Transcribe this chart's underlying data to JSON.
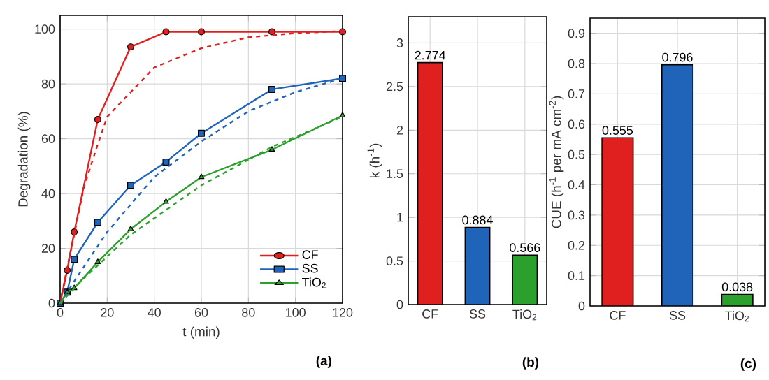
{
  "chart_data": [
    {
      "type": "line",
      "xlabel": "t (min)",
      "ylabel": "Degradation (%)",
      "xlim": [
        0,
        120
      ],
      "ylim": [
        0,
        105
      ],
      "xticks": [
        0,
        20,
        40,
        60,
        80,
        100,
        120
      ],
      "yticks": [
        0,
        20,
        40,
        60,
        80,
        100
      ],
      "grid": true,
      "legend": "bottom right",
      "annotations": [
        "(a)"
      ],
      "series": [
        {
          "name": "CF",
          "color": "#e0201f",
          "marker": "circle",
          "line_style": "solid",
          "x": [
            0,
            3,
            6,
            16,
            30,
            45,
            60,
            90,
            120
          ],
          "values": [
            0,
            12,
            26,
            67,
            93.5,
            99,
            99,
            99,
            99
          ]
        },
        {
          "name": "SS",
          "color": "#1f64b8",
          "marker": "square",
          "line_style": "solid",
          "x": [
            0,
            3,
            6,
            16,
            30,
            45,
            60,
            90,
            120
          ],
          "values": [
            0,
            4,
            16,
            29.5,
            43,
            51.5,
            62,
            78,
            82
          ]
        },
        {
          "name": "TiO$_{2}$",
          "color": "#2ca02c",
          "marker": "triangle",
          "line_style": "solid",
          "x": [
            0,
            3,
            6,
            16,
            30,
            45,
            60,
            90,
            120
          ],
          "values": [
            0,
            4,
            5.5,
            15,
            27,
            37,
            46,
            56,
            68.5
          ]
        },
        {
          "color": "#e0201f",
          "marker": "none",
          "line_style": "dashed",
          "x": [
            0,
            3,
            6,
            10,
            16,
            20,
            30,
            40,
            60,
            80,
            100,
            120
          ],
          "values": [
            0,
            13,
            25,
            42,
            58,
            68,
            77,
            86,
            93,
            97,
            98.5,
            99.3
          ]
        },
        {
          "color": "#1f64b8",
          "marker": "none",
          "line_style": "dashed",
          "x": [
            0,
            6,
            20,
            40,
            60,
            80,
            100,
            120
          ],
          "values": [
            0,
            8,
            26,
            46,
            59,
            70,
            77,
            82
          ]
        },
        {
          "color": "#2ca02c",
          "marker": "none",
          "line_style": "dashed",
          "x": [
            0,
            10,
            30,
            60,
            90,
            120
          ],
          "values": [
            0,
            9,
            25,
            43,
            57,
            68
          ]
        }
      ]
    },
    {
      "type": "bar",
      "ylabel": "k (h$^{-1}$)",
      "categories": [
        "CF",
        "SS",
        "TiO$_{2}$"
      ],
      "values": [
        2.774,
        0.884,
        0.566
      ],
      "colors": [
        "#e0201f",
        "#1f64b8",
        "#2ca02c"
      ],
      "ylim": [
        0,
        3.3
      ],
      "yticks": [
        0,
        0.5,
        1,
        1.5,
        2,
        2.5,
        3
      ],
      "grid": true,
      "data_labels": true,
      "annotations": [
        "(b)"
      ]
    },
    {
      "type": "bar",
      "ylabel": "CUE (h$^{-1}$ per mA cm$^{-2}$)",
      "categories": [
        "CF",
        "SS",
        "TiO$_{2}$"
      ],
      "values": [
        0.555,
        0.796,
        0.038
      ],
      "colors": [
        "#e0201f",
        "#1f64b8",
        "#2ca02c"
      ],
      "ylim": [
        0,
        0.95
      ],
      "yticks": [
        0,
        0.1,
        0.2,
        0.3,
        0.4,
        0.5,
        0.6,
        0.7,
        0.8,
        0.9
      ],
      "grid": true,
      "data_labels": true,
      "annotations": [
        "(c)"
      ]
    }
  ]
}
